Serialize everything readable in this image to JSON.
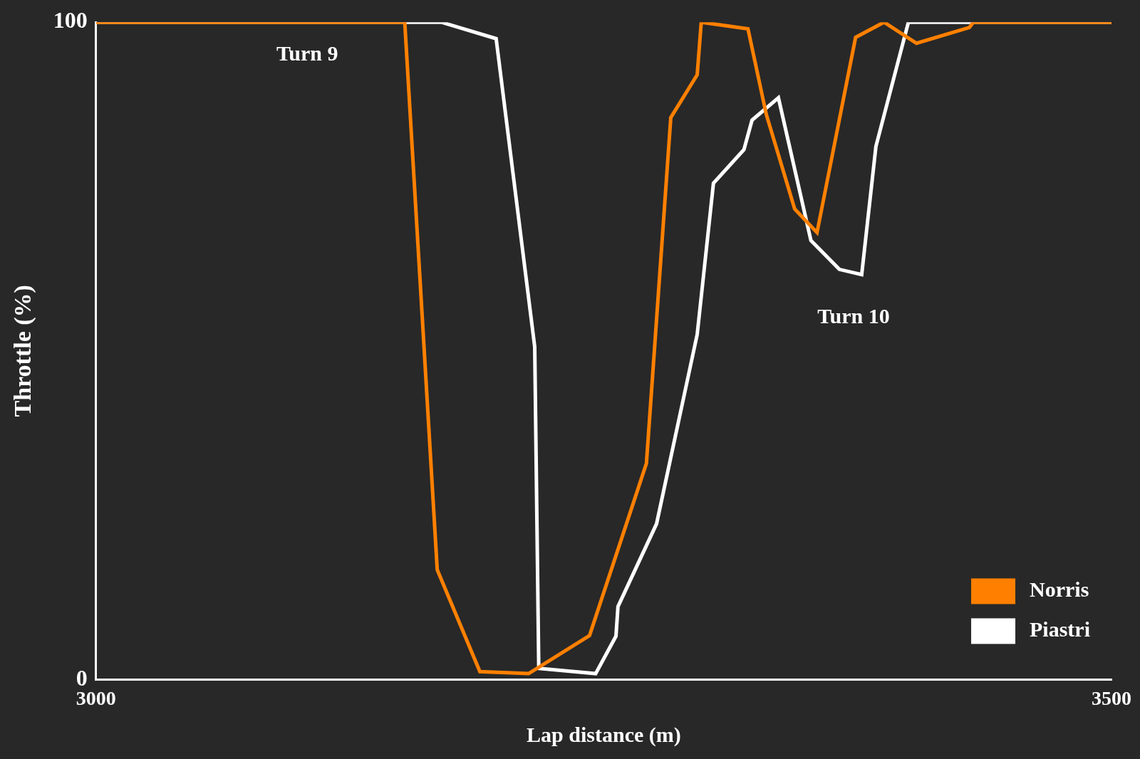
{
  "chart_data": {
    "type": "line",
    "x_label": "Lap distance (m)",
    "y_label": "Throttle (%)",
    "xlim": [
      3000,
      3500
    ],
    "xticks": [
      3000,
      3500
    ],
    "ylim": [
      0,
      100
    ],
    "yticks": [
      0,
      100
    ],
    "grid": false,
    "legend": "lower right",
    "annotations": [
      {
        "text": "Turn 9",
        "x": 3104,
        "y": 95
      },
      {
        "text": "Turn 10",
        "x": 3373,
        "y": 55
      }
    ],
    "series": [
      {
        "name": "Norris",
        "color": "#ff8000",
        "x": [
          3000,
          3152,
          3168,
          3189,
          3213,
          3243,
          3271,
          3283,
          3296,
          3298,
          3321,
          3330,
          3344,
          3355,
          3374,
          3388,
          3404,
          3430,
          3432,
          3500
        ],
        "values": [
          100,
          100,
          16.7,
          1.2,
          0.9,
          6.7,
          32.9,
          85.5,
          92,
          100,
          99,
          86,
          71.6,
          68,
          97.7,
          100,
          96.8,
          99.2,
          100,
          100
        ]
      },
      {
        "name": "Piastri",
        "color": "#ffffff",
        "x": [
          3000,
          3045,
          3094,
          3170,
          3197,
          3216,
          3218,
          3246,
          3256,
          3257,
          3276,
          3296,
          3304,
          3319,
          3323,
          3336,
          3352,
          3366,
          3377,
          3384,
          3400,
          3500
        ],
        "values": [
          100,
          100,
          100,
          100,
          97.5,
          50.6,
          1.7,
          0.9,
          6.6,
          11.1,
          23.7,
          52.5,
          75.5,
          80.6,
          85.1,
          88.5,
          66.8,
          62.4,
          61.6,
          81.1,
          100,
          100
        ]
      }
    ]
  }
}
